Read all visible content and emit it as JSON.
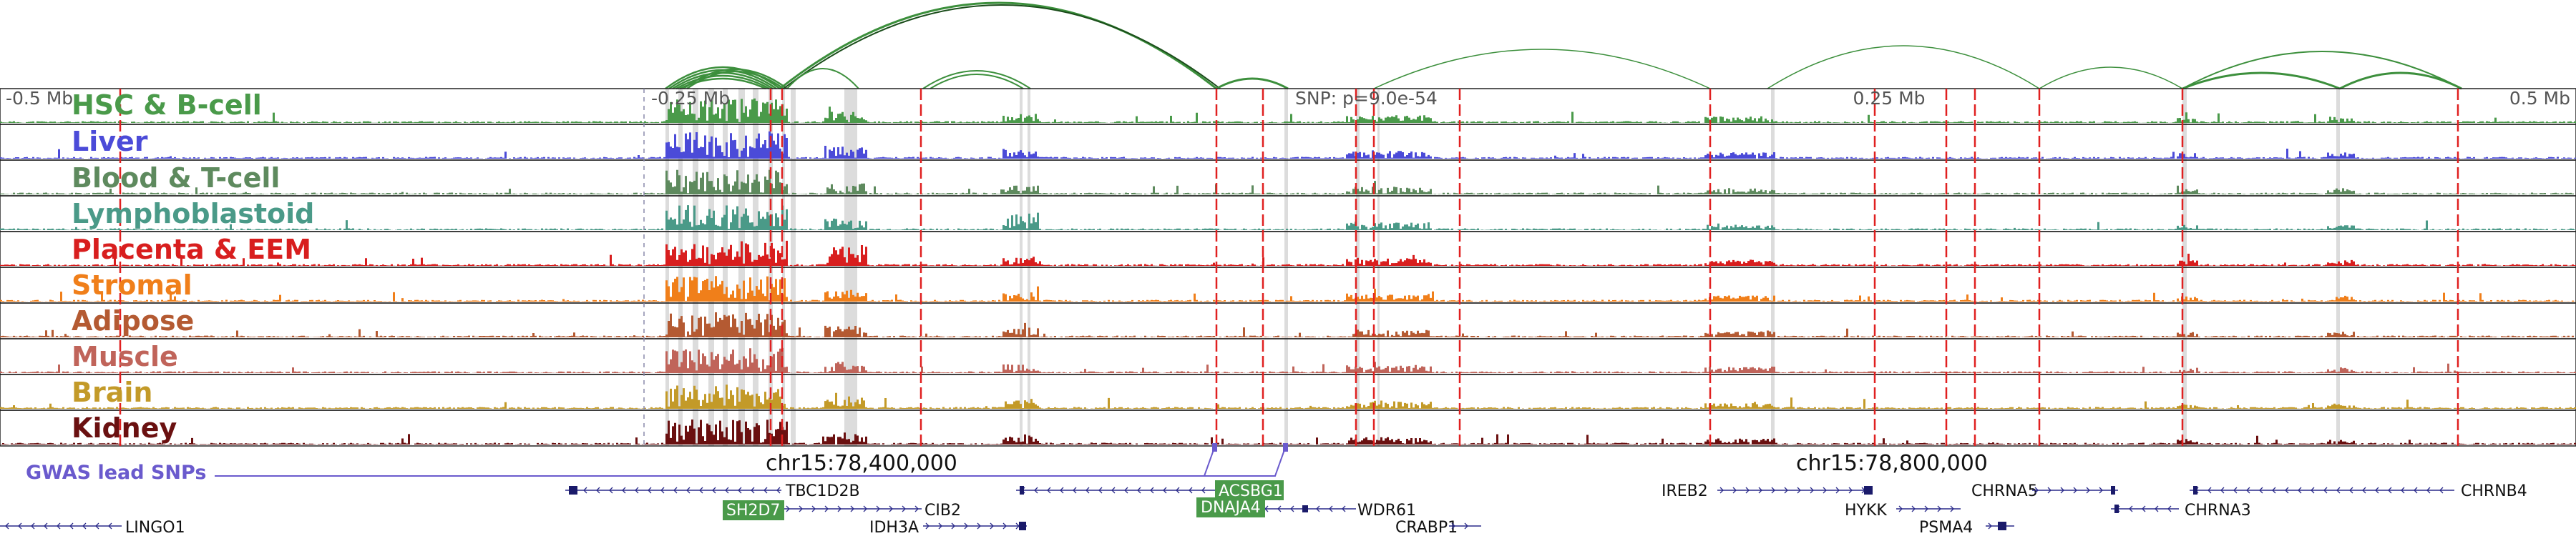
{
  "scale": {
    "markers": [
      {
        "label": "-0.5 Mb",
        "anchor": "start"
      },
      {
        "label": "-0.25 Mb",
        "anchor": "start"
      },
      {
        "label": "0.25 Mb",
        "anchor": "middle"
      },
      {
        "label": "0.5 Mb",
        "anchor": "end"
      }
    ],
    "snp_label": "SNP: p=9.0e-54"
  },
  "tracks": [
    {
      "label": "HSC & B-cell",
      "color": "#4a9a4a"
    },
    {
      "label": "Liver",
      "color": "#4b4bd8"
    },
    {
      "label": "Blood & T-cell",
      "color": "#5e8a5e"
    },
    {
      "label": "Lymphoblastoid",
      "color": "#4a9a88"
    },
    {
      "label": "Placenta & EEM",
      "color": "#d81e1e"
    },
    {
      "label": "Stromal",
      "color": "#f07f1a"
    },
    {
      "label": "Adipose",
      "color": "#b45a32"
    },
    {
      "label": "Muscle",
      "color": "#c0645a"
    },
    {
      "label": "Brain",
      "color": "#c39a28"
    },
    {
      "label": "Kidney",
      "color": "#6a1010"
    }
  ],
  "coordinates": [
    "chr15:78,400,000",
    "chr15:78,800,000"
  ],
  "gwas_label": "GWAS lead SNPs",
  "genes": [
    {
      "name": "TBC1D2B",
      "highlight": false
    },
    {
      "name": "CIB2",
      "highlight": false
    },
    {
      "name": "IDH3A",
      "highlight": false
    },
    {
      "name": "SH2D7",
      "highlight": true
    },
    {
      "name": "ACSBG1",
      "highlight": true
    },
    {
      "name": "DNAJA4",
      "highlight": true
    },
    {
      "name": "WDR61",
      "highlight": false
    },
    {
      "name": "CRABP1",
      "highlight": false
    },
    {
      "name": "IREB2",
      "highlight": false
    },
    {
      "name": "HYKK",
      "highlight": false
    },
    {
      "name": "PSMA4",
      "highlight": false
    },
    {
      "name": "CHRNA5",
      "highlight": false
    },
    {
      "name": "CHRNA3",
      "highlight": false
    },
    {
      "name": "CHRNB4",
      "highlight": false
    },
    {
      "name": "LINGO1",
      "highlight": false
    }
  ],
  "colors": {
    "arc": "#3c8f3c",
    "arc_dark": "#1b4d1b",
    "red_line": "#e02020",
    "gray_band": "#dcdcdc",
    "gwas": "#6a5acd",
    "gene_box": "#4a9a4a",
    "gene_line": "#2a2a8a"
  }
}
